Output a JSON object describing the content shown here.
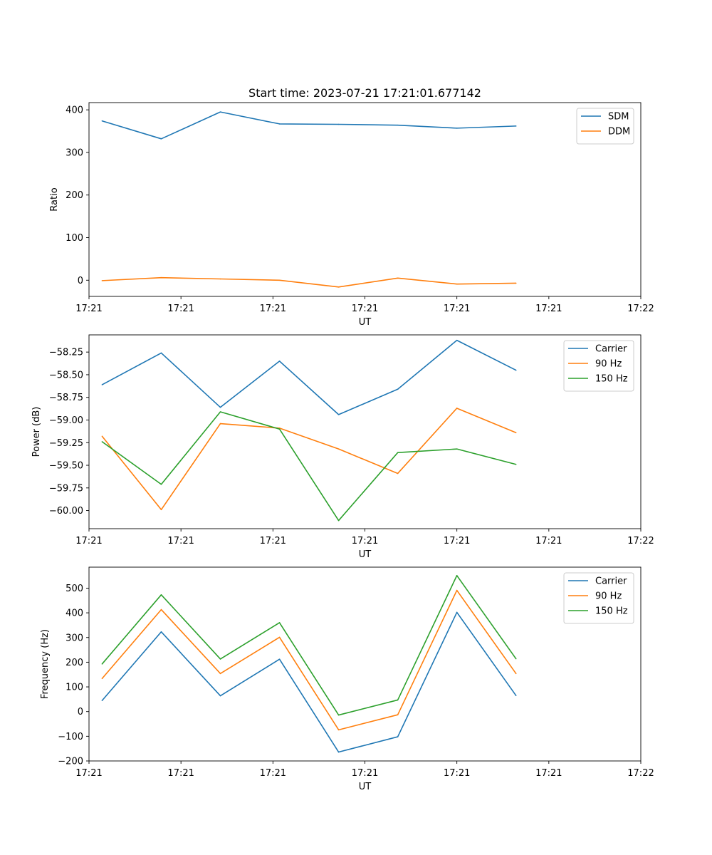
{
  "chart_data": [
    {
      "type": "line",
      "title": "Start time: 2023-07-21 17:21:01.677142",
      "xlabel": "UT",
      "ylabel": "Ratio",
      "x": [
        0.2,
        1.1,
        2.0,
        2.9,
        3.8,
        4.7,
        5.6,
        6.5
      ],
      "xlim": [
        0.0,
        8.4
      ],
      "xticks": [
        0.0,
        1.4,
        2.8,
        4.2,
        5.6,
        7.0,
        8.4
      ],
      "xtick_labels": [
        "17:21",
        "17:21",
        "17:21",
        "17:21",
        "17:21",
        "17:21",
        "17:22"
      ],
      "ylim": [
        -38,
        417
      ],
      "yticks": [
        0,
        100,
        200,
        300,
        400
      ],
      "ytick_labels": [
        "0",
        "100",
        "200",
        "300",
        "400"
      ],
      "legend_position": "top-right",
      "series": [
        {
          "name": "SDM",
          "color": "#1f77b4",
          "values": [
            374,
            332,
            395,
            367,
            366,
            364,
            357,
            362
          ]
        },
        {
          "name": "DDM",
          "color": "#ff7f0e",
          "values": [
            -1,
            6,
            3,
            0,
            -16,
            5,
            -9,
            -7
          ]
        }
      ]
    },
    {
      "type": "line",
      "title": "",
      "xlabel": "UT",
      "ylabel": "Power (dB)",
      "x": [
        0.2,
        1.1,
        2.0,
        2.9,
        3.8,
        4.7,
        5.6,
        6.5
      ],
      "xlim": [
        0.0,
        8.4
      ],
      "xticks": [
        0.0,
        1.4,
        2.8,
        4.2,
        5.6,
        7.0,
        8.4
      ],
      "xtick_labels": [
        "17:21",
        "17:21",
        "17:21",
        "17:21",
        "17:21",
        "17:21",
        "17:22"
      ],
      "ylim": [
        -60.2,
        -58.06
      ],
      "yticks": [
        -60.0,
        -59.75,
        -59.5,
        -59.25,
        -59.0,
        -58.75,
        -58.5,
        -58.25
      ],
      "ytick_labels": [
        "−60.00",
        "−59.75",
        "−59.50",
        "−59.25",
        "−59.00",
        "−58.75",
        "−58.50",
        "−58.25"
      ],
      "legend_position": "top-right",
      "series": [
        {
          "name": "Carrier",
          "color": "#1f77b4",
          "values": [
            -58.61,
            -58.26,
            -58.86,
            -58.35,
            -58.94,
            -58.66,
            -58.12,
            -58.45
          ]
        },
        {
          "name": "90 Hz",
          "color": "#ff7f0e",
          "values": [
            -59.18,
            -59.99,
            -59.04,
            -59.09,
            -59.32,
            -59.59,
            -58.87,
            -59.14
          ]
        },
        {
          "name": "150 Hz",
          "color": "#2ca02c",
          "values": [
            -59.24,
            -59.71,
            -58.91,
            -59.1,
            -60.11,
            -59.36,
            -59.32,
            -59.49
          ]
        }
      ]
    },
    {
      "type": "line",
      "title": "",
      "xlabel": "UT",
      "ylabel": "Frequency (Hz)",
      "x": [
        0.2,
        1.1,
        2.0,
        2.9,
        3.8,
        4.7,
        5.6,
        6.5
      ],
      "xlim": [
        0.0,
        8.4
      ],
      "xticks": [
        0.0,
        1.4,
        2.8,
        4.2,
        5.6,
        7.0,
        8.4
      ],
      "xtick_labels": [
        "17:21",
        "17:21",
        "17:21",
        "17:21",
        "17:21",
        "17:21",
        "17:22"
      ],
      "ylim": [
        -200,
        585
      ],
      "yticks": [
        -200,
        -100,
        0,
        100,
        200,
        300,
        400,
        500
      ],
      "ytick_labels": [
        "−200",
        "−100",
        "0",
        "100",
        "200",
        "300",
        "400",
        "500"
      ],
      "legend_position": "top-right",
      "series": [
        {
          "name": "Carrier",
          "color": "#1f77b4",
          "values": [
            45,
            323,
            64,
            212,
            -164,
            -102,
            402,
            65
          ]
        },
        {
          "name": "90 Hz",
          "color": "#ff7f0e",
          "values": [
            134,
            413,
            154,
            301,
            -74,
            -13,
            491,
            154
          ]
        },
        {
          "name": "150 Hz",
          "color": "#2ca02c",
          "values": [
            193,
            473,
            213,
            360,
            -14,
            47,
            551,
            214
          ]
        }
      ]
    }
  ]
}
